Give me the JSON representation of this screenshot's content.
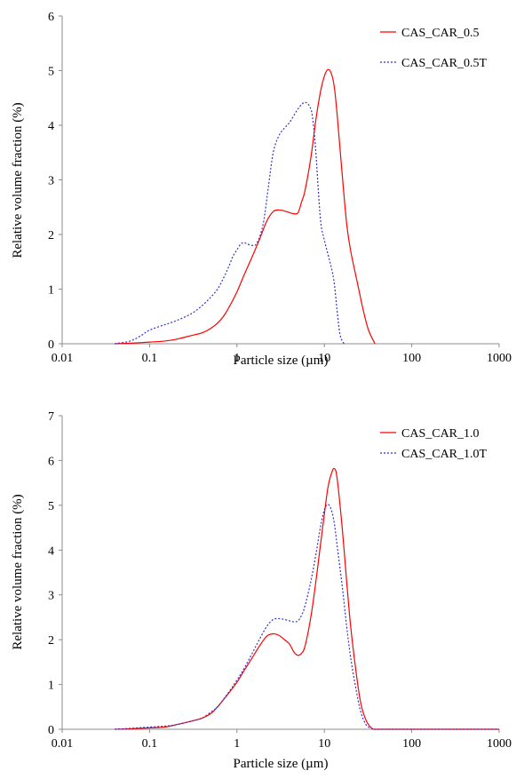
{
  "chart_data": [
    {
      "type": "line",
      "xscale": "log",
      "xlim": [
        0.01,
        1000
      ],
      "ylim": [
        0,
        6
      ],
      "xticks": [
        "0.01",
        "0.1",
        "1",
        "10",
        "100",
        "1000"
      ],
      "yticks": [
        "0",
        "1",
        "2",
        "3",
        "4",
        "5",
        "6"
      ],
      "xlabel": "Particle size (µm)",
      "ylabel": "Relative volume fraction (%)",
      "legend_position": "top-right",
      "series": [
        {
          "name": "CAS_CAR_0.5",
          "color": "#ff0000",
          "style": "solid",
          "points": [
            [
              0.04,
              0
            ],
            [
              0.06,
              0.01
            ],
            [
              0.1,
              0.03
            ],
            [
              0.15,
              0.05
            ],
            [
              0.2,
              0.08
            ],
            [
              0.3,
              0.15
            ],
            [
              0.4,
              0.2
            ],
            [
              0.5,
              0.28
            ],
            [
              0.6,
              0.38
            ],
            [
              0.7,
              0.5
            ],
            [
              0.8,
              0.65
            ],
            [
              1,
              0.95
            ],
            [
              1.2,
              1.25
            ],
            [
              1.5,
              1.6
            ],
            [
              1.8,
              1.9
            ],
            [
              2.2,
              2.25
            ],
            [
              2.6,
              2.42
            ],
            [
              3,
              2.45
            ],
            [
              3.5,
              2.43
            ],
            [
              4,
              2.4
            ],
            [
              4.5,
              2.38
            ],
            [
              5,
              2.4
            ],
            [
              5.5,
              2.6
            ],
            [
              6,
              2.8
            ],
            [
              7,
              3.4
            ],
            [
              8,
              4.1
            ],
            [
              9,
              4.6
            ],
            [
              10,
              4.9
            ],
            [
              11,
              5.02
            ],
            [
              12,
              4.95
            ],
            [
              13,
              4.7
            ],
            [
              14,
              4.2
            ],
            [
              16,
              3.1
            ],
            [
              18,
              2.2
            ],
            [
              20,
              1.7
            ],
            [
              24,
              1.1
            ],
            [
              28,
              0.6
            ],
            [
              32,
              0.25
            ],
            [
              38,
              0
            ]
          ]
        },
        {
          "name": "CAS_CAR_0.5T",
          "color": "#3333cc",
          "style": "dotted",
          "points": [
            [
              0.04,
              0
            ],
            [
              0.06,
              0.05
            ],
            [
              0.08,
              0.15
            ],
            [
              0.1,
              0.25
            ],
            [
              0.15,
              0.35
            ],
            [
              0.2,
              0.42
            ],
            [
              0.3,
              0.55
            ],
            [
              0.4,
              0.7
            ],
            [
              0.5,
              0.85
            ],
            [
              0.6,
              1
            ],
            [
              0.7,
              1.2
            ],
            [
              0.8,
              1.4
            ],
            [
              0.9,
              1.6
            ],
            [
              1,
              1.72
            ],
            [
              1.1,
              1.82
            ],
            [
              1.2,
              1.85
            ],
            [
              1.3,
              1.83
            ],
            [
              1.5,
              1.8
            ],
            [
              1.7,
              1.85
            ],
            [
              2,
              2.2
            ],
            [
              2.3,
              2.9
            ],
            [
              2.6,
              3.5
            ],
            [
              3,
              3.8
            ],
            [
              3.5,
              3.95
            ],
            [
              4,
              4.05
            ],
            [
              5,
              4.3
            ],
            [
              6,
              4.42
            ],
            [
              7,
              4.3
            ],
            [
              7.5,
              4
            ],
            [
              8,
              3.5
            ],
            [
              9,
              2.3
            ],
            [
              10,
              1.9
            ],
            [
              12,
              1.4
            ],
            [
              13,
              1.1
            ],
            [
              14,
              0.6
            ],
            [
              15,
              0.2
            ],
            [
              16,
              0.05
            ],
            [
              17,
              0
            ]
          ]
        }
      ]
    },
    {
      "type": "line",
      "xscale": "log",
      "xlim": [
        0.01,
        1000
      ],
      "ylim": [
        0,
        7
      ],
      "xticks": [
        "0.01",
        "0.1",
        "1",
        "10",
        "100",
        "1000"
      ],
      "yticks": [
        "0",
        "1",
        "2",
        "3",
        "4",
        "5",
        "6",
        "7"
      ],
      "xlabel": "Particle size (µm)",
      "ylabel": "Relative volume fraction (%)",
      "legend_position": "top-right",
      "series": [
        {
          "name": "CAS_CAR_1.0",
          "color": "#ff0000",
          "style": "solid",
          "points": [
            [
              0.04,
              0
            ],
            [
              0.06,
              0.01
            ],
            [
              0.1,
              0.03
            ],
            [
              0.15,
              0.05
            ],
            [
              0.2,
              0.1
            ],
            [
              0.3,
              0.18
            ],
            [
              0.4,
              0.25
            ],
            [
              0.5,
              0.35
            ],
            [
              0.6,
              0.5
            ],
            [
              0.8,
              0.8
            ],
            [
              1,
              1.05
            ],
            [
              1.2,
              1.3
            ],
            [
              1.5,
              1.6
            ],
            [
              1.8,
              1.85
            ],
            [
              2.2,
              2.08
            ],
            [
              2.6,
              2.13
            ],
            [
              3,
              2.1
            ],
            [
              3.5,
              2
            ],
            [
              4,
              1.9
            ],
            [
              4.5,
              1.72
            ],
            [
              5,
              1.65
            ],
            [
              5.5,
              1.7
            ],
            [
              6,
              1.85
            ],
            [
              7,
              2.5
            ],
            [
              8,
              3.3
            ],
            [
              9,
              4.1
            ],
            [
              10,
              4.8
            ],
            [
              11,
              5.4
            ],
            [
              12,
              5.7
            ],
            [
              13,
              5.82
            ],
            [
              14,
              5.6
            ],
            [
              16,
              4.5
            ],
            [
              18,
              3.3
            ],
            [
              20,
              2.3
            ],
            [
              23,
              1.3
            ],
            [
              26,
              0.6
            ],
            [
              30,
              0.2
            ],
            [
              35,
              0.02
            ],
            [
              40,
              0
            ],
            [
              100,
              0
            ],
            [
              1000,
              0
            ]
          ]
        },
        {
          "name": "CAS_CAR_1.0T",
          "color": "#3333cc",
          "style": "dotted",
          "points": [
            [
              0.04,
              0
            ],
            [
              0.06,
              0.02
            ],
            [
              0.1,
              0.05
            ],
            [
              0.15,
              0.07
            ],
            [
              0.2,
              0.1
            ],
            [
              0.3,
              0.18
            ],
            [
              0.4,
              0.25
            ],
            [
              0.5,
              0.38
            ],
            [
              0.6,
              0.5
            ],
            [
              0.8,
              0.82
            ],
            [
              1,
              1.1
            ],
            [
              1.2,
              1.35
            ],
            [
              1.5,
              1.7
            ],
            [
              1.8,
              2
            ],
            [
              2.2,
              2.3
            ],
            [
              2.6,
              2.45
            ],
            [
              3,
              2.47
            ],
            [
              3.5,
              2.45
            ],
            [
              4,
              2.42
            ],
            [
              4.5,
              2.4
            ],
            [
              5,
              2.42
            ],
            [
              5.5,
              2.55
            ],
            [
              6,
              2.75
            ],
            [
              7,
              3.3
            ],
            [
              8,
              3.9
            ],
            [
              9,
              4.5
            ],
            [
              10,
              4.9
            ],
            [
              11,
              5.02
            ],
            [
              12,
              4.9
            ],
            [
              13,
              4.6
            ],
            [
              14,
              4.1
            ],
            [
              16,
              3.2
            ],
            [
              18,
              2.3
            ],
            [
              20,
              1.6
            ],
            [
              23,
              0.9
            ],
            [
              26,
              0.4
            ],
            [
              30,
              0.1
            ],
            [
              35,
              0.02
            ],
            [
              40,
              0
            ],
            [
              100,
              0
            ],
            [
              1000,
              0
            ]
          ]
        }
      ]
    }
  ]
}
